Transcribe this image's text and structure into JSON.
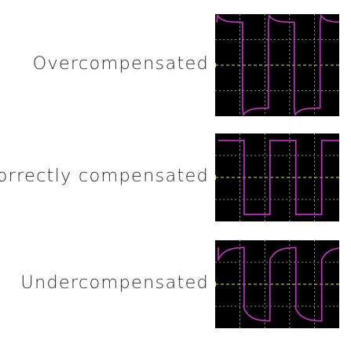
{
  "panels": [
    {
      "id": "over",
      "label": "Overcompensated",
      "shape": "overshoot"
    },
    {
      "id": "correct",
      "label": "Correctly compensated",
      "shape": "square"
    },
    {
      "id": "under",
      "label": "Undercompensated",
      "shape": "rounded"
    }
  ],
  "colors": {
    "trace": "#cc33cc",
    "grid": "#bbbbbb",
    "center": "#dddd66",
    "screen": "#000000",
    "text": "#2b2b2b"
  }
}
